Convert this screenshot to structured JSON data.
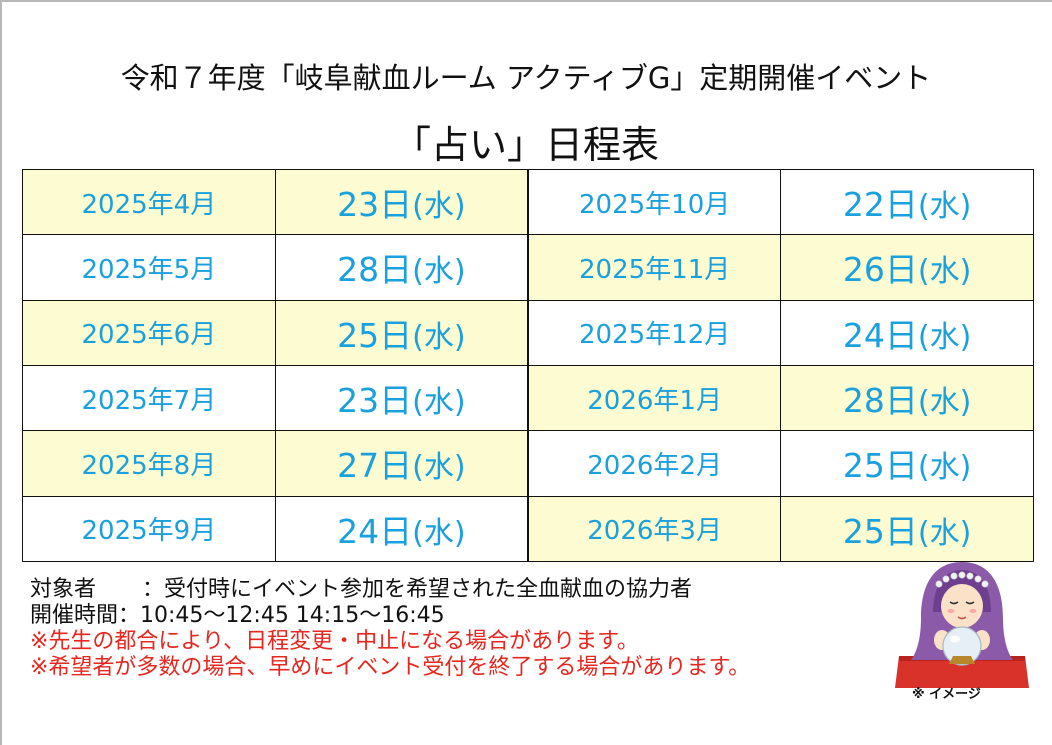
{
  "title": {
    "line1": "令和７年度「岐阜献血ルーム アクティブG」定期開催イベント",
    "line2": "「占い」日程表"
  },
  "schedule": {
    "rows": [
      {
        "left_month": "2025年4月",
        "left_day": "23日",
        "left_weekday": "(水)",
        "right_month": "2025年10月",
        "right_day": "22日",
        "right_weekday": "(水)"
      },
      {
        "left_month": "2025年5月",
        "left_day": "28日",
        "left_weekday": "(水)",
        "right_month": "2025年11月",
        "right_day": "26日",
        "right_weekday": "(水)"
      },
      {
        "left_month": "2025年6月",
        "left_day": "25日",
        "left_weekday": "(水)",
        "right_month": "2025年12月",
        "right_day": "24日",
        "right_weekday": "(水)"
      },
      {
        "left_month": "2025年7月",
        "left_day": "23日",
        "left_weekday": "(水)",
        "right_month": "2026年1月",
        "right_day": "28日",
        "right_weekday": "(水)"
      },
      {
        "left_month": "2025年8月",
        "left_day": "27日",
        "left_weekday": "(水)",
        "right_month": "2026年2月",
        "right_day": "25日",
        "right_weekday": "(水)"
      },
      {
        "left_month": "2025年9月",
        "left_day": "24日",
        "left_weekday": "(水)",
        "right_month": "2026年3月",
        "right_day": "25日",
        "right_weekday": "(水)"
      }
    ],
    "colors": {
      "text": "#1aa0dc",
      "highlight": "#fdfbd1",
      "border": "#111111"
    }
  },
  "notes": {
    "target_label": "対象者",
    "target_value": "：受付時にイベント参加を希望された全血献血の協力者",
    "hours_label": "開催時間",
    "hours_value": "：10:45～12:45 14:15～16:45",
    "warning1": "※先生の都合により、日程変更・中止になる場合があります。",
    "warning2": "※希望者が多数の場合、早めにイベント受付を終了する場合があります。",
    "warning_color": "#e6261f"
  },
  "illustration": {
    "icon": "fortune-teller-crystal-ball-icon",
    "caption": "※ イメージ"
  }
}
